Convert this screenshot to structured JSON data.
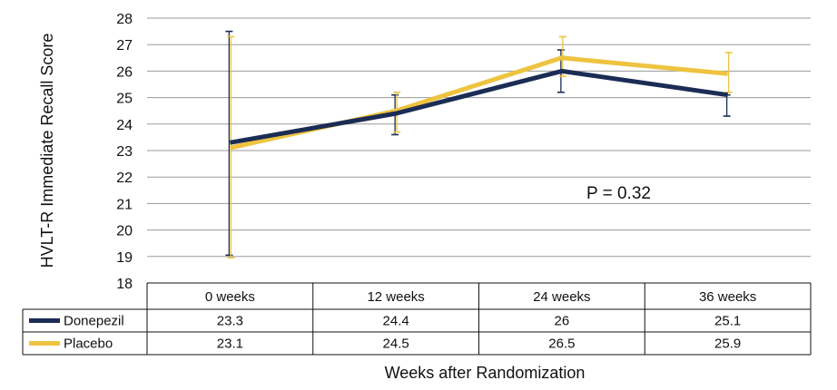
{
  "chart_data": {
    "type": "line",
    "ylabel": "HVLT-R Immediate Recall Score",
    "xlabel": "Weeks after Randomization",
    "categories": [
      "0 weeks",
      "12 weeks",
      "24 weeks",
      "36 weeks"
    ],
    "ylim": [
      18,
      28
    ],
    "yticks": [
      18,
      19,
      20,
      21,
      22,
      23,
      24,
      25,
      26,
      27,
      28
    ],
    "grid": true,
    "annotation": "P = 0.32",
    "series": [
      {
        "name": "Donepezil",
        "color": "#1b2c55",
        "values": [
          23.3,
          24.4,
          26,
          25.1
        ],
        "labels": [
          "23.3",
          "24.4",
          "26",
          "25.1"
        ],
        "error": [
          [
            19.05,
            27.5
          ],
          [
            23.6,
            25.1
          ],
          [
            25.2,
            26.8
          ],
          [
            24.3,
            25.1
          ]
        ]
      },
      {
        "name": "Placebo",
        "color": "#eec340",
        "values": [
          23.1,
          24.5,
          26.5,
          25.9
        ],
        "labels": [
          "23.1",
          "24.5",
          "26.5",
          "25.9"
        ],
        "error": [
          [
            18.95,
            27.3
          ],
          [
            23.7,
            25.2
          ],
          [
            25.8,
            27.3
          ],
          [
            25.2,
            26.7
          ]
        ]
      }
    ]
  }
}
